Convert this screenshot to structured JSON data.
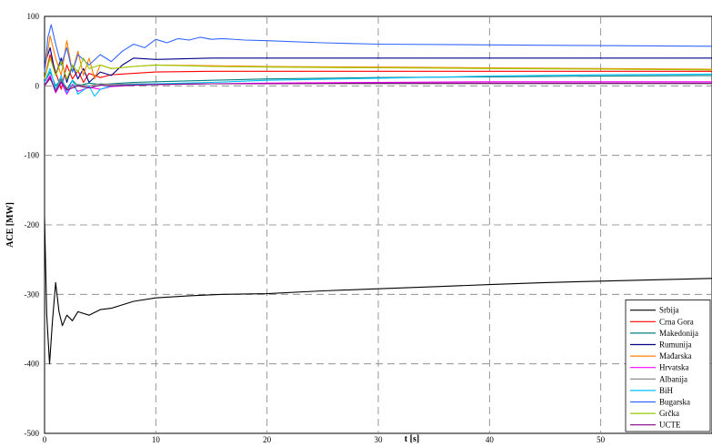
{
  "chart_data": {
    "type": "line",
    "title": "",
    "xlabel": "t [s]",
    "ylabel": "ACE [MW]",
    "xlim": [
      0,
      60
    ],
    "ylim": [
      -500,
      100
    ],
    "xticks": [
      "0",
      "10",
      "20",
      "30",
      "40",
      "50"
    ],
    "yticks": [
      "100",
      "0",
      "-100",
      "-200",
      "-300",
      "-400",
      "-500"
    ],
    "grid": true,
    "legend_position": "bottom-right",
    "series": [
      {
        "name": "Srbija",
        "color": "#000000",
        "x": [
          0,
          0.2,
          0.45,
          0.7,
          1.0,
          1.3,
          1.6,
          2.0,
          2.5,
          3,
          4,
          5,
          6,
          8,
          10,
          13,
          16,
          20,
          25,
          30,
          35,
          40,
          45,
          50,
          55,
          60
        ],
        "y": [
          -190,
          -330,
          -400,
          -340,
          -283,
          -325,
          -345,
          -330,
          -338,
          -325,
          -330,
          -322,
          -320,
          -310,
          -305,
          -302,
          -300,
          -299,
          -295,
          -292,
          -289,
          -286,
          -283,
          -281,
          -279,
          -277
        ]
      },
      {
        "name": "Crna Gora",
        "color": "#ff0000",
        "x": [
          0,
          0.5,
          1,
          1.5,
          2,
          2.5,
          3,
          3.5,
          4,
          5,
          6,
          8,
          10,
          15,
          20,
          25,
          30,
          40,
          50,
          60
        ],
        "y": [
          10,
          45,
          20,
          -5,
          30,
          10,
          22,
          5,
          18,
          12,
          16,
          18,
          20,
          21,
          21,
          21,
          21,
          21,
          21,
          21
        ]
      },
      {
        "name": "Makedonija",
        "color": "#008080",
        "x": [
          0,
          0.5,
          1,
          1.5,
          2,
          2.5,
          3,
          4,
          5,
          6,
          8,
          10,
          15,
          20,
          30,
          40,
          50,
          60
        ],
        "y": [
          5,
          20,
          0,
          10,
          -5,
          8,
          0,
          4,
          2,
          3,
          5,
          6,
          8,
          10,
          12,
          13,
          14,
          15
        ]
      },
      {
        "name": "Rumunija",
        "color": "#00008b",
        "x": [
          0,
          0.5,
          1,
          1.5,
          2,
          2.5,
          3,
          3.5,
          4,
          5,
          6,
          7,
          8,
          10,
          15,
          20,
          30,
          40,
          50,
          60
        ],
        "y": [
          30,
          55,
          15,
          40,
          5,
          30,
          10,
          25,
          5,
          20,
          15,
          30,
          40,
          38,
          40,
          40,
          40,
          40,
          40,
          40
        ]
      },
      {
        "name": "Mađarska",
        "color": "#ff8000",
        "x": [
          0,
          0.5,
          1,
          1.5,
          2,
          2.5,
          3,
          3.5,
          4,
          4.5,
          5,
          6,
          8,
          10,
          15,
          20,
          30,
          40,
          50,
          60
        ],
        "y": [
          20,
          72,
          40,
          15,
          65,
          20,
          50,
          15,
          40,
          10,
          30,
          25,
          28,
          30,
          29,
          28,
          27,
          26,
          25,
          24
        ]
      },
      {
        "name": "Hrvatska",
        "color": "#ff00ff",
        "x": [
          0,
          0.5,
          1,
          1.5,
          2,
          2.5,
          3,
          4,
          5,
          6,
          8,
          10,
          15,
          20,
          30,
          40,
          50,
          60
        ],
        "y": [
          0,
          15,
          -10,
          5,
          -12,
          2,
          -8,
          -2,
          -5,
          -1,
          1,
          2,
          3,
          4,
          5,
          6,
          6,
          6
        ]
      },
      {
        "name": "Albanija",
        "color": "#808080",
        "x": [
          0,
          0.5,
          1,
          1.5,
          2,
          3,
          4,
          5,
          6,
          8,
          10,
          15,
          20,
          30,
          40,
          50,
          60
        ],
        "y": [
          0,
          10,
          -5,
          8,
          -3,
          2,
          0,
          3,
          2,
          3,
          3,
          3,
          3,
          3,
          3,
          3,
          3
        ]
      },
      {
        "name": "BiH",
        "color": "#00bfff",
        "x": [
          0,
          0.5,
          1,
          1.5,
          2,
          2.5,
          3,
          4,
          4.5,
          5,
          6,
          8,
          10,
          15,
          20,
          30,
          40,
          50,
          60
        ],
        "y": [
          5,
          25,
          -5,
          15,
          -10,
          8,
          -12,
          0,
          -15,
          -5,
          0,
          2,
          3,
          5,
          8,
          11,
          14,
          16,
          17
        ]
      },
      {
        "name": "Bugarska",
        "color": "#3366ff",
        "x": [
          0,
          0.3,
          0.6,
          1,
          1.5,
          2,
          2.5,
          3,
          4,
          5,
          6,
          7,
          8,
          9,
          10,
          11,
          12,
          13,
          14,
          15,
          16,
          18,
          20,
          25,
          30,
          40,
          50,
          60
        ],
        "y": [
          20,
          70,
          88,
          60,
          30,
          55,
          20,
          45,
          30,
          45,
          35,
          50,
          60,
          55,
          67,
          62,
          68,
          66,
          70,
          67,
          68,
          66,
          65,
          62,
          60,
          59,
          58,
          57
        ]
      },
      {
        "name": "Grčka",
        "color": "#99cc00",
        "x": [
          0,
          0.5,
          1,
          1.5,
          2,
          2.5,
          3,
          3.5,
          4,
          5,
          6,
          8,
          10,
          15,
          20,
          30,
          40,
          50,
          60
        ],
        "y": [
          10,
          40,
          15,
          35,
          10,
          30,
          20,
          40,
          25,
          30,
          25,
          28,
          30,
          28,
          27,
          26,
          25,
          24,
          23
        ]
      },
      {
        "name": "UCTE",
        "color": "#800080",
        "x": [
          0,
          0.5,
          1,
          1.5,
          2,
          3,
          4,
          5,
          6,
          8,
          10,
          15,
          20,
          30,
          40,
          50,
          60
        ],
        "y": [
          0,
          12,
          -8,
          6,
          -6,
          0,
          -3,
          1,
          0,
          1,
          2,
          3,
          3,
          4,
          4,
          4,
          4
        ]
      }
    ]
  }
}
